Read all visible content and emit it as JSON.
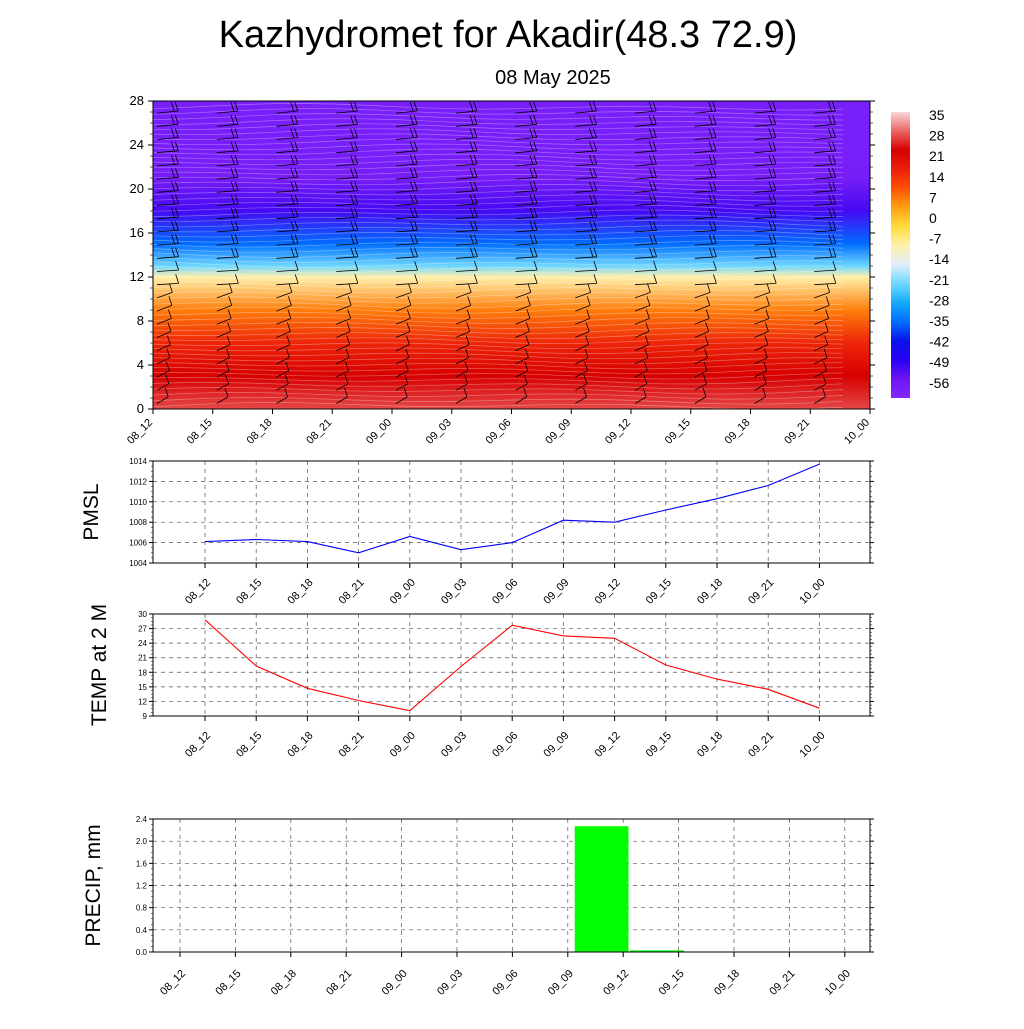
{
  "header": {
    "title": "Kazhydromet for Akadir(48.3 72.9)",
    "date": "08 May 2025"
  },
  "chart_data": [
    {
      "type": "heatmap",
      "name": "meteogram-cross-section",
      "x": [
        "08_12",
        "08_15",
        "08_18",
        "08_21",
        "09_00",
        "09_03",
        "09_06",
        "09_09",
        "09_12",
        "09_15",
        "09_18",
        "09_21",
        "10_00"
      ],
      "y_ticks": [
        0,
        4,
        8,
        12,
        16,
        20,
        24,
        28
      ],
      "ylim": [
        0,
        28
      ],
      "colorbar": {
        "labels": [
          "35",
          "28",
          "21",
          "14",
          "7",
          "0",
          "-7",
          "-14",
          "-21",
          "-28",
          "-35",
          "-42",
          "-49",
          "-56"
        ],
        "range": [
          -63,
          42
        ]
      },
      "temperature_profile": [
        {
          "y": 0,
          "value": 33
        },
        {
          "y": 3,
          "value": 28
        },
        {
          "y": 6,
          "value": 20
        },
        {
          "y": 9,
          "value": 10
        },
        {
          "y": 12,
          "value": -7
        },
        {
          "y": 13,
          "value": -21
        },
        {
          "y": 15,
          "value": -35
        },
        {
          "y": 18,
          "value": -52
        },
        {
          "y": 21,
          "value": -59
        },
        {
          "y": 24,
          "value": -60
        },
        {
          "y": 28,
          "value": -60
        }
      ],
      "wind_barbs": true
    },
    {
      "type": "line",
      "name": "pmsl",
      "ylabel": "PMSL",
      "x": [
        "08_12",
        "08_15",
        "08_18",
        "08_21",
        "09_00",
        "09_03",
        "09_06",
        "09_09",
        "09_12",
        "09_15",
        "09_18",
        "09_21",
        "10_00"
      ],
      "values": [
        1006.1,
        1006.3,
        1006.1,
        1005.0,
        1006.6,
        1005.3,
        1006.0,
        1008.2,
        1008.0,
        1009.2,
        1010.3,
        1011.6,
        1013.7
      ],
      "ylim": [
        1004,
        1014
      ],
      "y_ticks": [
        1004,
        1006,
        1008,
        1010,
        1012,
        1014
      ],
      "color": "#0000ff",
      "grid": true
    },
    {
      "type": "line",
      "name": "temp-2m",
      "ylabel": "TEMP at 2 M",
      "x": [
        "08_12",
        "08_15",
        "08_18",
        "08_21",
        "09_00",
        "09_03",
        "09_06",
        "09_09",
        "09_12",
        "09_15",
        "09_18",
        "09_21",
        "10_00"
      ],
      "values": [
        28.8,
        19.3,
        14.7,
        12.2,
        10.1,
        19.2,
        27.7,
        25.5,
        25.0,
        19.5,
        16.6,
        14.5,
        10.6
      ],
      "ylim": [
        9,
        30
      ],
      "y_ticks": [
        9,
        12,
        15,
        18,
        21,
        24,
        27,
        30
      ],
      "color": "#ff0000",
      "grid": true
    },
    {
      "type": "bar",
      "name": "precip",
      "ylabel": "PRECIP, mm",
      "x": [
        "08_12",
        "08_15",
        "08_18",
        "08_21",
        "09_00",
        "09_03",
        "09_06",
        "09_09",
        "09_12",
        "09_15",
        "09_18",
        "09_21",
        "10_00"
      ],
      "values": [
        0,
        0,
        0,
        0,
        0,
        0,
        0,
        0,
        2.27,
        0.03,
        0,
        0,
        0
      ],
      "ylim": [
        0,
        2.4
      ],
      "y_ticks": [
        "0.0",
        "0.4",
        "0.8",
        "1.2",
        "1.6",
        "2.0",
        "2.4"
      ],
      "color": "#00ff00",
      "grid": true
    }
  ]
}
